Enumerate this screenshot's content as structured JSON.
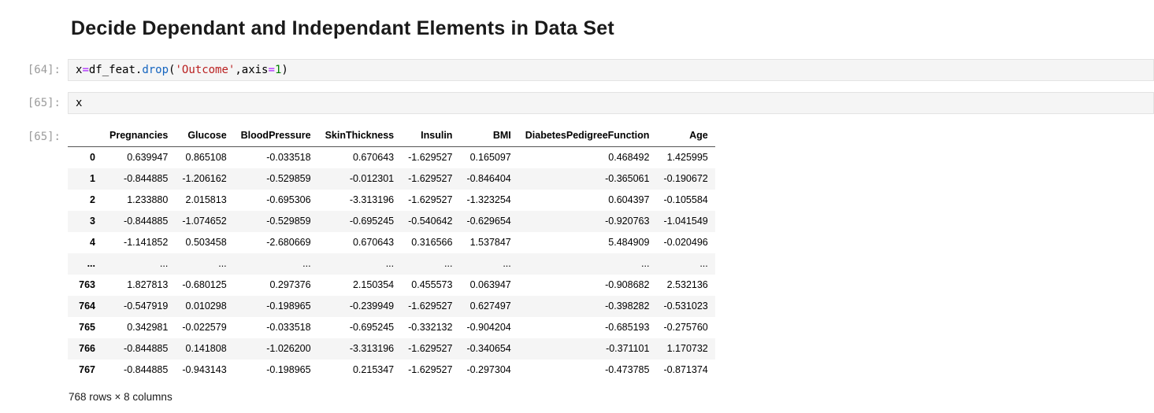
{
  "page": {
    "title": "Decide Dependant and Independant Elements in Data Set"
  },
  "syntax_colors": {
    "plain": "#000000",
    "operator": "#AA22FF",
    "function": "#1565c0",
    "string": "#BA2121",
    "number": "#008000"
  },
  "ui_colors": {
    "prompt_gray": "#9b9b9b",
    "cell_background": "#f5f5f5",
    "cell_border": "#e3e3e3",
    "row_stripe": "#f5f5f5",
    "header_rule": "#555555"
  },
  "cells": [
    {
      "prompt": "[64]:",
      "tokens": [
        {
          "text": "x",
          "kind": "plain"
        },
        {
          "text": "=",
          "kind": "operator"
        },
        {
          "text": "df_feat",
          "kind": "plain"
        },
        {
          "text": ".",
          "kind": "plain"
        },
        {
          "text": "drop",
          "kind": "function"
        },
        {
          "text": "(",
          "kind": "plain"
        },
        {
          "text": "'Outcome'",
          "kind": "string"
        },
        {
          "text": ",axis",
          "kind": "plain"
        },
        {
          "text": "=",
          "kind": "operator"
        },
        {
          "text": "1",
          "kind": "number"
        },
        {
          "text": ")",
          "kind": "plain"
        }
      ]
    },
    {
      "prompt": "[65]:",
      "tokens": [
        {
          "text": "x",
          "kind": "plain"
        }
      ]
    }
  ],
  "output": {
    "prompt": "[65]:",
    "table": {
      "index_header": "",
      "columns": [
        "Pregnancies",
        "Glucose",
        "BloodPressure",
        "SkinThickness",
        "Insulin",
        "BMI",
        "DiabetesPedigreeFunction",
        "Age"
      ],
      "rows": [
        {
          "index": "0",
          "values": [
            "0.639947",
            "0.865108",
            "-0.033518",
            "0.670643",
            "-1.629527",
            "0.165097",
            "0.468492",
            "1.425995"
          ]
        },
        {
          "index": "1",
          "values": [
            "-0.844885",
            "-1.206162",
            "-0.529859",
            "-0.012301",
            "-1.629527",
            "-0.846404",
            "-0.365061",
            "-0.190672"
          ]
        },
        {
          "index": "2",
          "values": [
            "1.233880",
            "2.015813",
            "-0.695306",
            "-3.313196",
            "-1.629527",
            "-1.323254",
            "0.604397",
            "-0.105584"
          ]
        },
        {
          "index": "3",
          "values": [
            "-0.844885",
            "-1.074652",
            "-0.529859",
            "-0.695245",
            "-0.540642",
            "-0.629654",
            "-0.920763",
            "-1.041549"
          ]
        },
        {
          "index": "4",
          "values": [
            "-1.141852",
            "0.503458",
            "-2.680669",
            "0.670643",
            "0.316566",
            "1.537847",
            "5.484909",
            "-0.020496"
          ]
        },
        {
          "index": "...",
          "values": [
            "...",
            "...",
            "...",
            "...",
            "...",
            "...",
            "...",
            "..."
          ]
        },
        {
          "index": "763",
          "values": [
            "1.827813",
            "-0.680125",
            "0.297376",
            "2.150354",
            "0.455573",
            "0.063947",
            "-0.908682",
            "2.532136"
          ]
        },
        {
          "index": "764",
          "values": [
            "-0.547919",
            "0.010298",
            "-0.198965",
            "-0.239949",
            "-1.629527",
            "0.627497",
            "-0.398282",
            "-0.531023"
          ]
        },
        {
          "index": "765",
          "values": [
            "0.342981",
            "-0.022579",
            "-0.033518",
            "-0.695245",
            "-0.332132",
            "-0.904204",
            "-0.685193",
            "-0.275760"
          ]
        },
        {
          "index": "766",
          "values": [
            "-0.844885",
            "0.141808",
            "-1.026200",
            "-3.313196",
            "-1.629527",
            "-0.340654",
            "-0.371101",
            "1.170732"
          ]
        },
        {
          "index": "767",
          "values": [
            "-0.844885",
            "-0.943143",
            "-0.198965",
            "0.215347",
            "-1.629527",
            "-0.297304",
            "-0.473785",
            "-0.871374"
          ]
        }
      ],
      "footer": "768 rows × 8 columns"
    }
  }
}
